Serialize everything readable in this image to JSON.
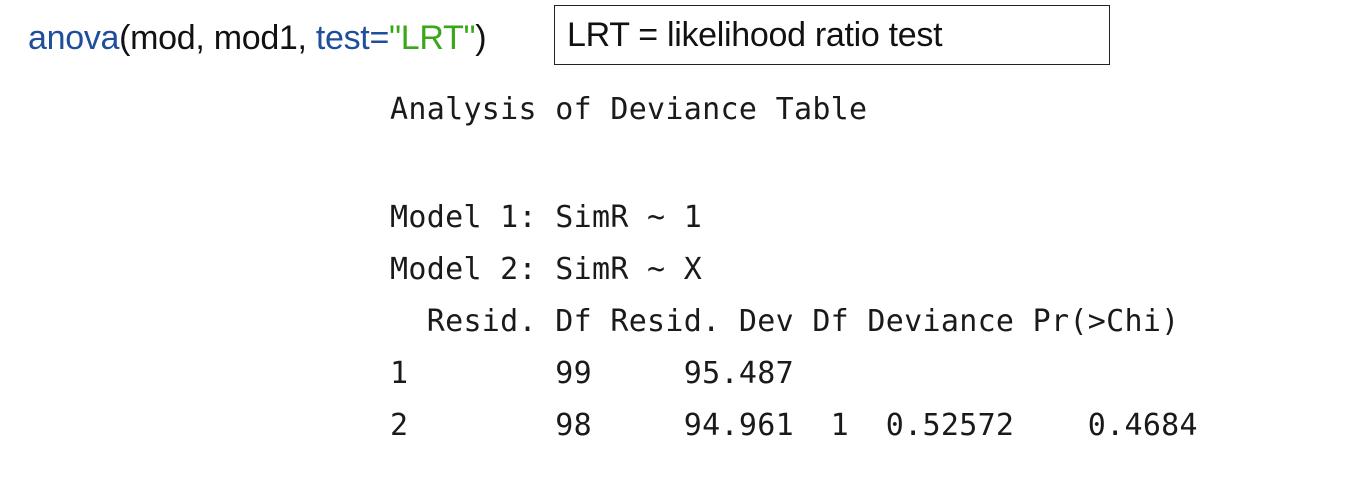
{
  "command": {
    "fn": "anova",
    "open": "(mod, mod1, ",
    "arg_name": "test",
    "eq": "=",
    "arg_value": "\"LRT\"",
    "close": ")"
  },
  "note": {
    "text": "LRT = likelihood ratio test"
  },
  "output": {
    "title": "Analysis of Deviance Table",
    "model1": "Model 1: SimR ~ 1",
    "model2": "Model 2: SimR ~ X",
    "table": {
      "header": "  Resid. Df Resid. Dev Df Deviance Pr(>Chi)",
      "rows": [
        "1        99     95.487",
        "2        98     94.961  1  0.52572    0.4684"
      ],
      "columns": [
        "Resid. Df",
        "Resid. Dev",
        "Df",
        "Deviance",
        "Pr(>Chi)"
      ],
      "values": [
        {
          "row": "1",
          "resid_df": 99,
          "resid_dev": 95.487,
          "df": "",
          "deviance": "",
          "pr_chi": ""
        },
        {
          "row": "2",
          "resid_df": 98,
          "resid_dev": 94.961,
          "df": 1,
          "deviance": 0.52572,
          "pr_chi": 0.4684
        }
      ]
    }
  }
}
